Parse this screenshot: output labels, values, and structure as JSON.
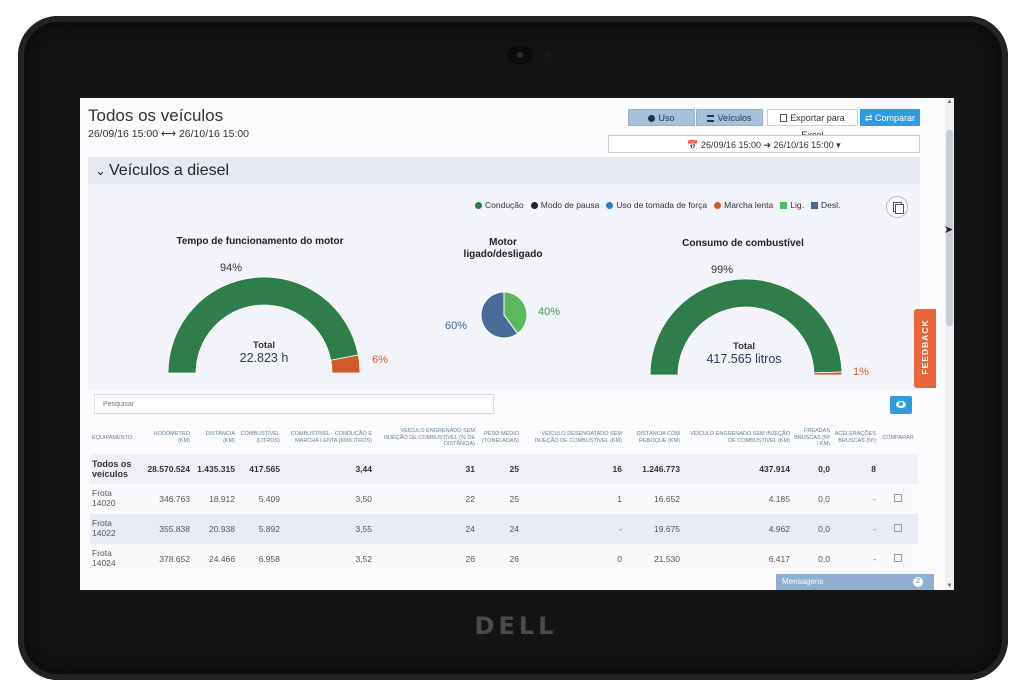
{
  "header": {
    "title": "Todos os veículos",
    "date_range_text": "26/09/16 15:00 ⟷ 26/10/16 15:00"
  },
  "toolbar": {
    "uso_label": "Uso",
    "veiculos_label": "Veículos",
    "excel_label": "Exportar para Excel",
    "comparar_label": "⇄ Comparar",
    "date_picker_text": "📅 26/09/16 15:00  ➜  26/10/16 15:00  ▾"
  },
  "section": {
    "title": "Veículos a diesel"
  },
  "legend": [
    {
      "label": "Condução",
      "color": "#2e7d4a",
      "shape": "dot"
    },
    {
      "label": "Modo de pausa",
      "color": "#2b1f1f",
      "shape": "dot"
    },
    {
      "label": "Uso de tomada de força",
      "color": "#2e7dc4",
      "shape": "dot"
    },
    {
      "label": "Marcha lenta",
      "color": "#d05a2c",
      "shape": "dot"
    },
    {
      "label": "Lig.",
      "color": "#5cb85c",
      "shape": "square"
    },
    {
      "label": "Desl.",
      "color": "#4a6a9a",
      "shape": "square"
    }
  ],
  "chart_data": [
    {
      "type": "pie",
      "subtype": "half-donut gauge",
      "title": "Tempo de funcionamento do motor",
      "slices": [
        {
          "label": "Condução",
          "value": 94,
          "display": "94%"
        },
        {
          "label": "Marcha lenta",
          "value": 6,
          "display": "6%"
        }
      ],
      "total_label": "Total",
      "total_value": "22.823 h"
    },
    {
      "type": "pie",
      "title": "Motor ligado/desligado",
      "title_line1": "Motor",
      "title_line2": "ligado/desligado",
      "slices": [
        {
          "label": "Lig.",
          "value": 40,
          "display": "40%"
        },
        {
          "label": "Desl.",
          "value": 60,
          "display": "60%"
        }
      ]
    },
    {
      "type": "pie",
      "subtype": "half-donut gauge",
      "title": "Consumo de combustível",
      "slices": [
        {
          "label": "Condução",
          "value": 99,
          "display": "99%"
        },
        {
          "label": "Marcha lenta",
          "value": 1,
          "display": "1%"
        }
      ],
      "total_label": "Total",
      "total_value": "417.565 litros"
    }
  ],
  "search": {
    "placeholder": "Pesquisar"
  },
  "table": {
    "columns": [
      "Equipamento",
      "Hodômetro (km)",
      "Distância (km)",
      "Combustível (litros)",
      "Combustível - condução e marcha lenta (km/litros)",
      "Veículo engrenado sem injeção de combustível (% de distância)",
      "Peso médio (toneladas)",
      "Veículo desengatado sem injeção de combustível (km)",
      "Distância com reboque (km)",
      "Veículo engrenado sem injeção de combustível (km)",
      "Freadas bruscas (nº / km)",
      "Acelerações bruscas (nº)",
      "Comparar"
    ],
    "rows": [
      {
        "equip1": "Todos os",
        "equip2": "veículos",
        "cells": [
          "28.570.524",
          "1.435.315",
          "417.565",
          "3,44",
          "31",
          "25",
          "16",
          "1.246.773",
          "437.914",
          "0,0",
          "8"
        ]
      },
      {
        "equip1": "Frota",
        "equip2": "14020",
        "cells": [
          "346.763",
          "18.912",
          "5.409",
          "3,50",
          "22",
          "25",
          "1",
          "16.652",
          "4.185",
          "0,0",
          "-"
        ]
      },
      {
        "equip1": "Frota",
        "equip2": "14022",
        "cells": [
          "355.838",
          "20.938",
          "5.892",
          "3,55",
          "24",
          "24",
          "-",
          "19.675",
          "4.962",
          "0,0",
          "-"
        ]
      },
      {
        "equip1": "Frota",
        "equip2": "14024",
        "cells": [
          "378.652",
          "24.466",
          "6.958",
          "3,52",
          "26",
          "26",
          "0",
          "21.530",
          "6.417",
          "0,0",
          "-"
        ]
      }
    ]
  },
  "feedback_label": "FEEDBACK",
  "messages": {
    "label": "Mensagens",
    "count": "2"
  },
  "brand": {
    "logo_text": "DELL"
  },
  "colors": {
    "green": "#2e7d4a",
    "orange": "#d05a2c",
    "pie_green": "#5cb85c",
    "pie_blue": "#4a6a9a",
    "accent": "#2e9de0"
  }
}
